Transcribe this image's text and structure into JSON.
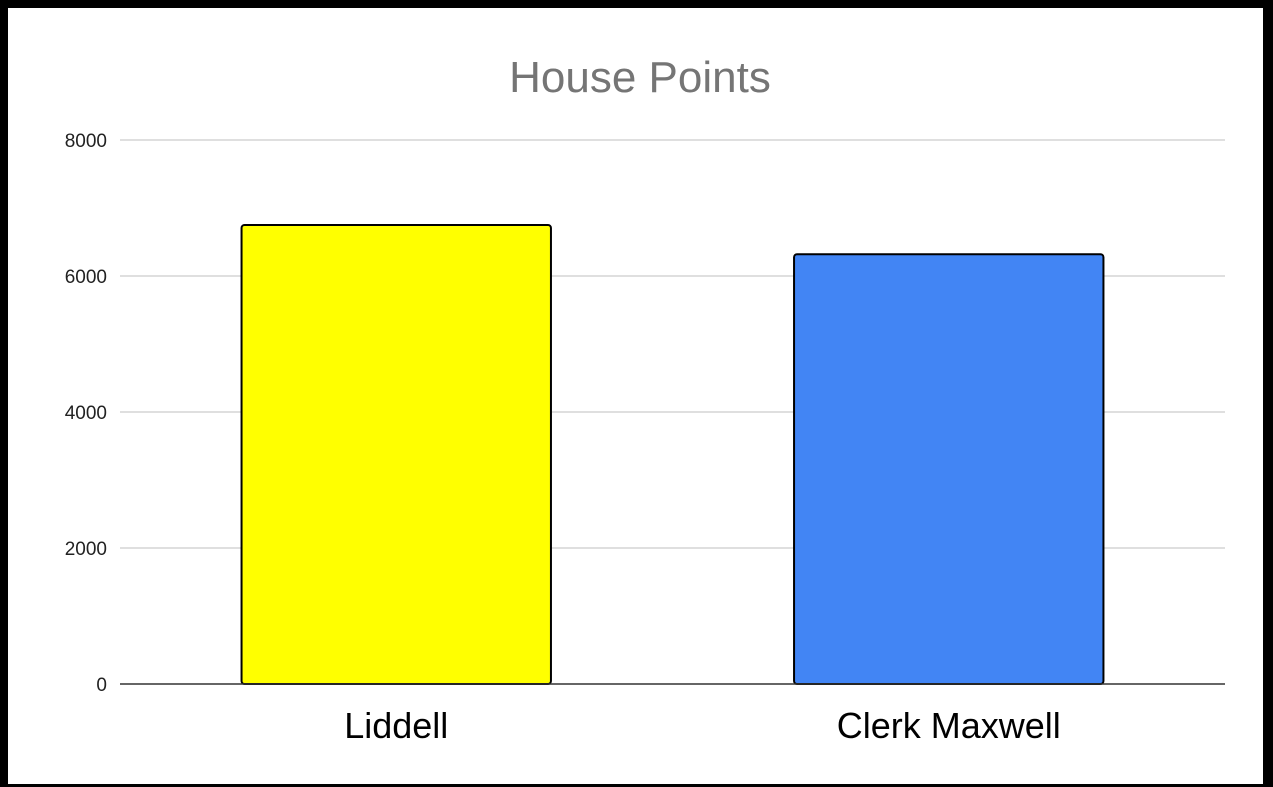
{
  "chart_data": {
    "type": "bar",
    "title": "House Points",
    "xlabel": "",
    "ylabel": "",
    "categories": [
      "Liddell",
      "Clerk Maxwell"
    ],
    "values": [
      6750,
      6320
    ],
    "colors": [
      "#ffff00",
      "#4285f4"
    ],
    "ylim": [
      0,
      8000
    ],
    "yticks": [
      0,
      2000,
      4000,
      6000,
      8000
    ],
    "ytick_labels": [
      "0",
      "2000",
      "4000",
      "6000",
      "8000"
    ],
    "grid": true,
    "legend": "none"
  }
}
